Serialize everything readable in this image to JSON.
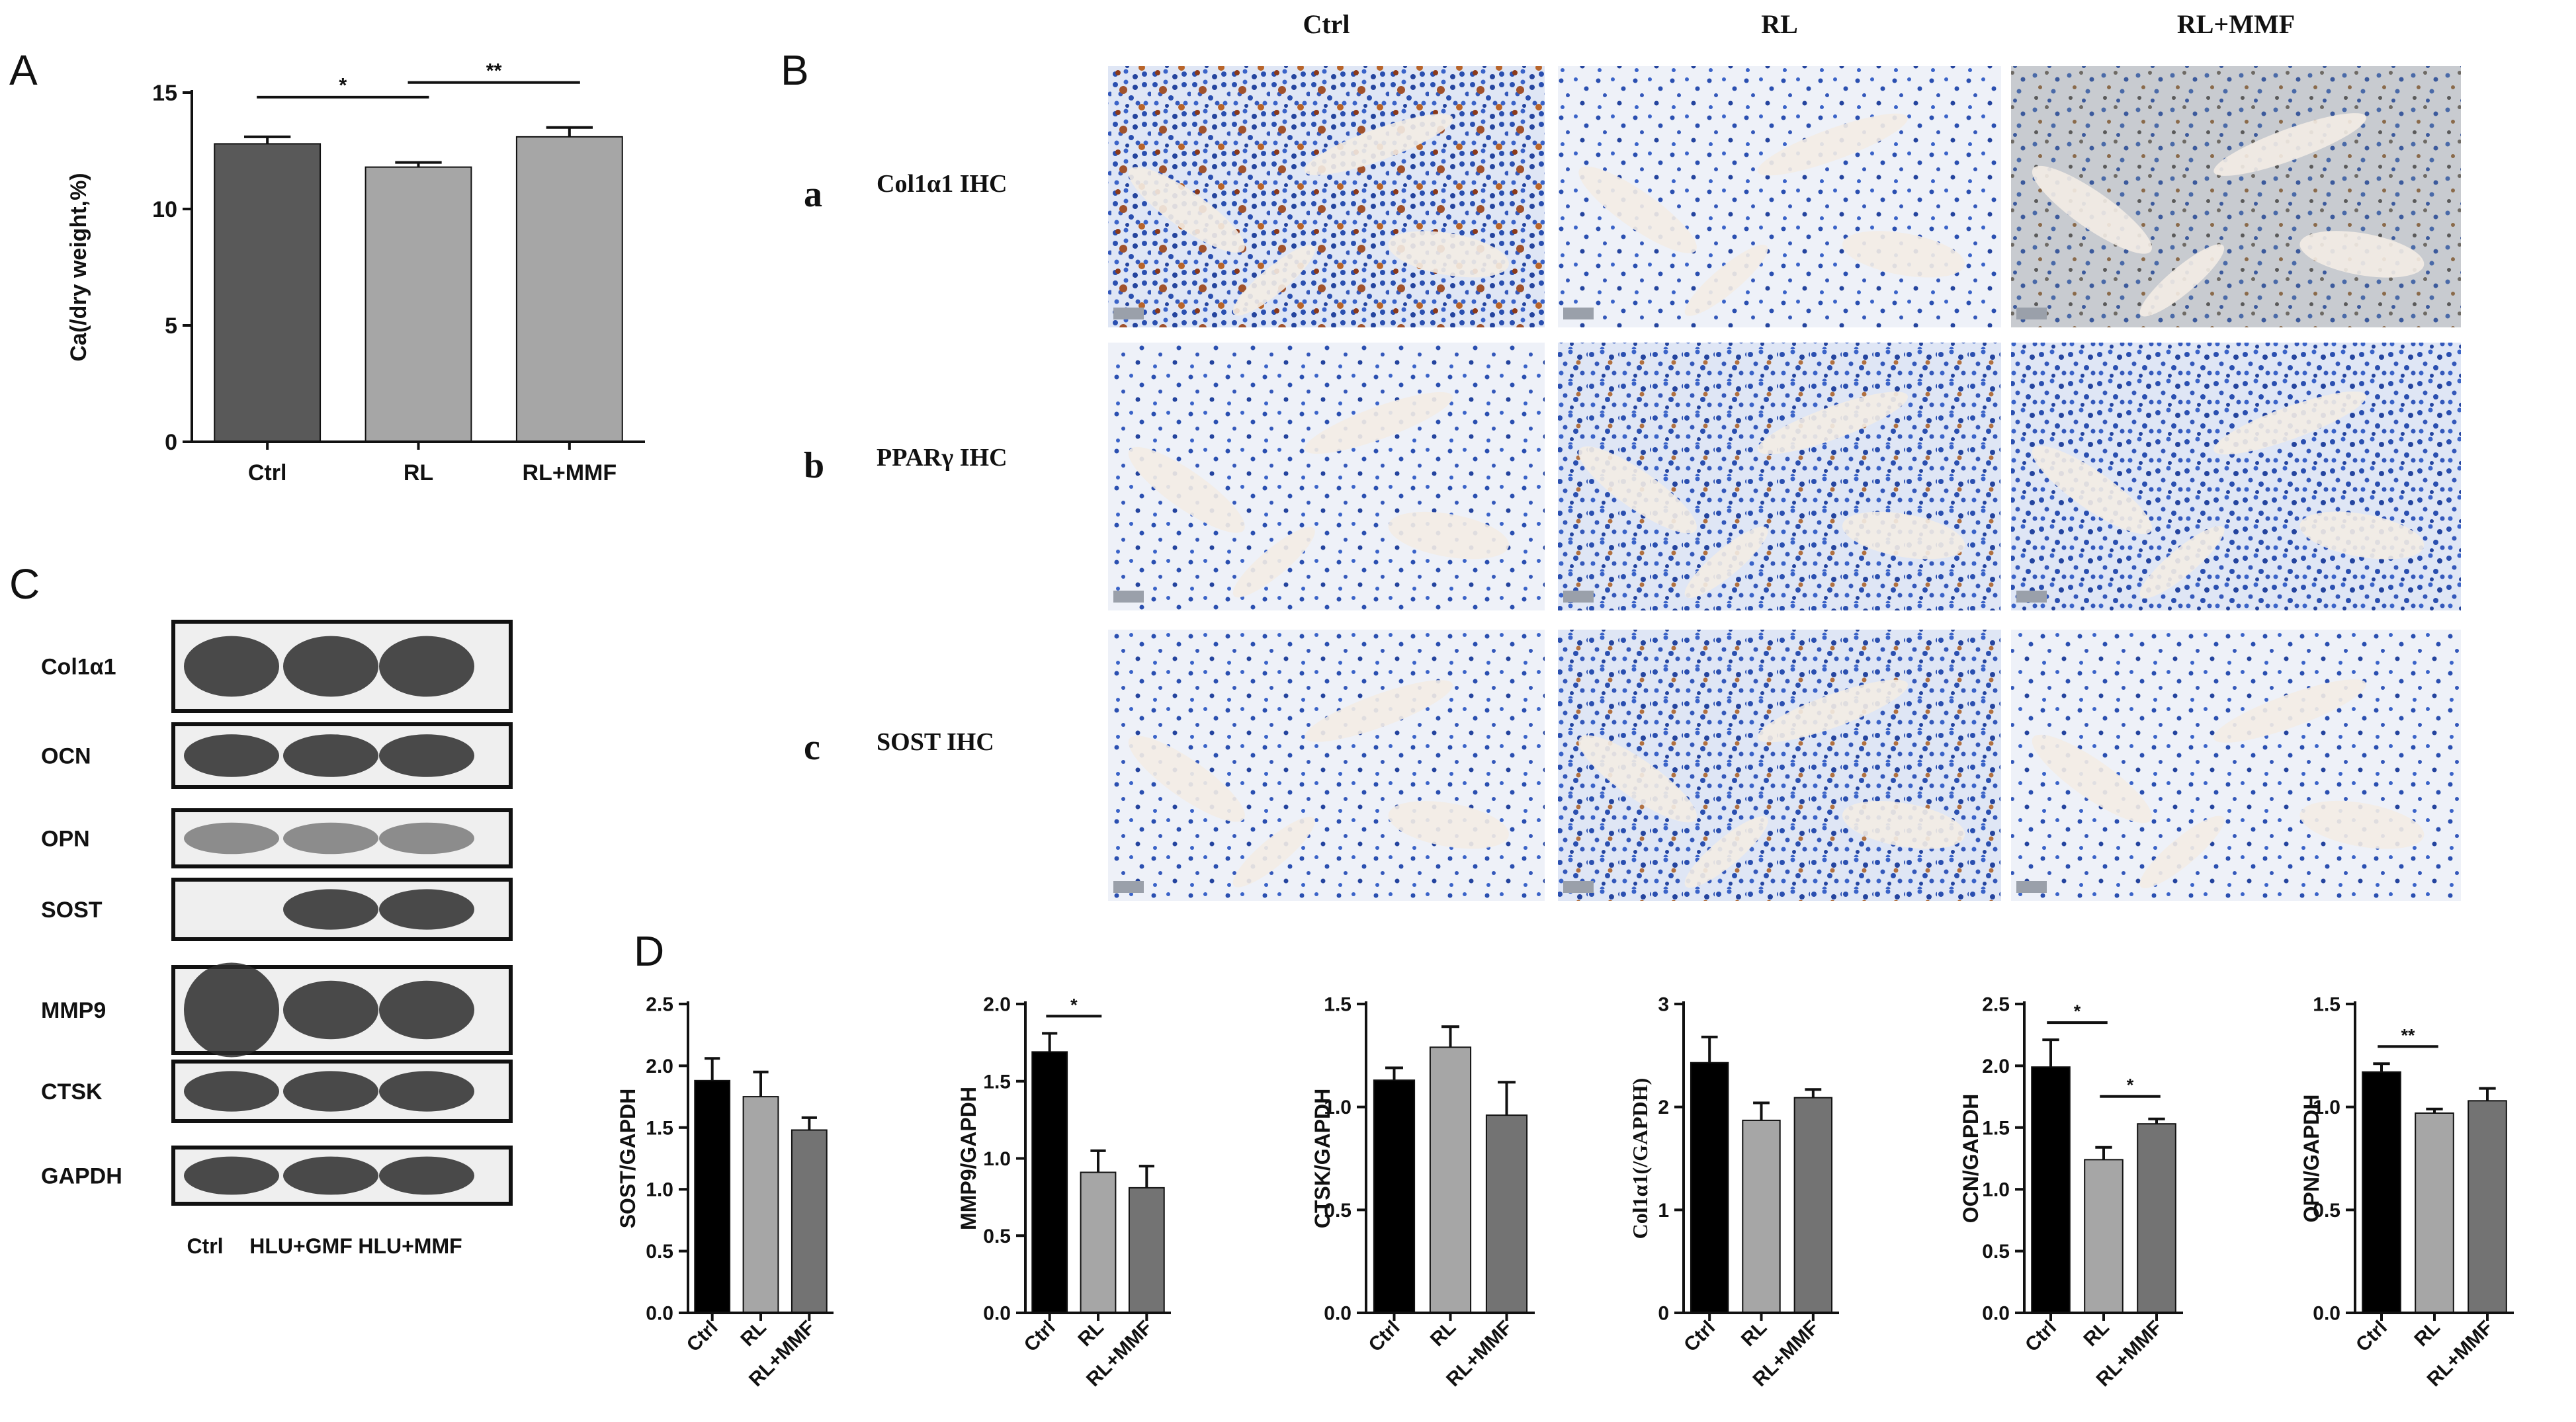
{
  "panels": {
    "A": "A",
    "B": "B",
    "C": "C",
    "D": "D"
  },
  "histology": {
    "columns": [
      "Ctrl",
      "RL",
      "RL+MMF"
    ],
    "rows": [
      {
        "letter": "a",
        "label": "Col1α1 IHC"
      },
      {
        "letter": "b",
        "label": "PPARγ IHC"
      },
      {
        "letter": "c",
        "label": "SOST IHC"
      }
    ]
  },
  "western": {
    "bands": [
      "Col1α1",
      "OCN",
      "OPN",
      "SOST",
      "MMP9",
      "CTSK",
      "GAPDH"
    ],
    "lanes": [
      "Ctrl",
      "HLU+GMF",
      "HLU+MMF"
    ]
  },
  "chart_data": [
    {
      "id": "A",
      "type": "bar",
      "categories": [
        "Ctrl",
        "RL",
        "RL+MMF"
      ],
      "values": [
        12.8,
        11.8,
        13.1
      ],
      "errors": [
        0.3,
        0.2,
        0.4
      ],
      "colors": [
        "#595959",
        "#a6a6a6",
        "#a6a6a6"
      ],
      "ylabel": "Ca(/dry weight,%)",
      "ylim": [
        0,
        15
      ],
      "yticks": [
        0,
        5,
        10,
        15
      ],
      "significance": [
        {
          "from": 0,
          "to": 1,
          "label": "*"
        },
        {
          "from": 1,
          "to": 2,
          "label": "**"
        }
      ]
    },
    {
      "id": "D1",
      "type": "bar",
      "categories": [
        "Ctrl",
        "RL",
        "RL+MMF"
      ],
      "values": [
        1.88,
        1.75,
        1.48
      ],
      "errors": [
        0.18,
        0.2,
        0.1
      ],
      "colors": [
        "#000000",
        "#a6a6a6",
        "#737373"
      ],
      "ylabel": "SOST/GAPDH",
      "ylim": [
        0,
        2.5
      ],
      "yticks": [
        0.0,
        0.5,
        1.0,
        1.5,
        2.0,
        2.5
      ],
      "significance": []
    },
    {
      "id": "D2",
      "type": "bar",
      "categories": [
        "Ctrl",
        "RL",
        "RL+MMF"
      ],
      "values": [
        1.69,
        0.91,
        0.81
      ],
      "errors": [
        0.12,
        0.14,
        0.14
      ],
      "colors": [
        "#000000",
        "#a6a6a6",
        "#737373"
      ],
      "ylabel": "MMP9/GAPDH",
      "ylim": [
        0,
        2.0
      ],
      "yticks": [
        0.0,
        0.5,
        1.0,
        1.5,
        2.0
      ],
      "significance": [
        {
          "from": 0,
          "to": 1,
          "label": "*"
        }
      ]
    },
    {
      "id": "D3",
      "type": "bar",
      "categories": [
        "Ctrl",
        "RL",
        "RL+MMF"
      ],
      "values": [
        1.13,
        1.29,
        0.96
      ],
      "errors": [
        0.06,
        0.1,
        0.16
      ],
      "colors": [
        "#000000",
        "#a6a6a6",
        "#737373"
      ],
      "ylabel": "CTSK/GAPDH",
      "ylim": [
        0,
        1.5
      ],
      "yticks": [
        0.0,
        0.5,
        1.0,
        1.5
      ],
      "significance": []
    },
    {
      "id": "D4",
      "type": "bar",
      "categories": [
        "Ctrl",
        "RL",
        "RL+MMF"
      ],
      "values": [
        2.43,
        1.87,
        2.09
      ],
      "errors": [
        0.25,
        0.17,
        0.08
      ],
      "colors": [
        "#000000",
        "#a6a6a6",
        "#737373"
      ],
      "ylabel": "Col1α1(/GAPDH)",
      "ylim": [
        0,
        3
      ],
      "yticks": [
        0,
        1,
        2,
        3
      ],
      "significance": []
    },
    {
      "id": "D5",
      "type": "bar",
      "categories": [
        "Ctrl",
        "RL",
        "RL+MMF"
      ],
      "values": [
        1.99,
        1.24,
        1.53
      ],
      "errors": [
        0.22,
        0.1,
        0.04
      ],
      "colors": [
        "#000000",
        "#a6a6a6",
        "#737373"
      ],
      "ylabel": "OCN/GAPDH",
      "ylim": [
        0,
        2.5
      ],
      "yticks": [
        0.0,
        0.5,
        1.0,
        1.5,
        2.0,
        2.5
      ],
      "significance": [
        {
          "from": 0,
          "to": 1,
          "label": "*"
        },
        {
          "from": 1,
          "to": 2,
          "label": "*"
        }
      ]
    },
    {
      "id": "D6",
      "type": "bar",
      "categories": [
        "Ctrl",
        "RL",
        "RL+MMF"
      ],
      "values": [
        1.17,
        0.97,
        1.03
      ],
      "errors": [
        0.04,
        0.02,
        0.06
      ],
      "colors": [
        "#000000",
        "#a6a6a6",
        "#737373"
      ],
      "ylabel": "OPN/GAPDH",
      "ylim": [
        0,
        1.5
      ],
      "yticks": [
        0.0,
        0.5,
        1.0,
        1.5
      ],
      "significance": [
        {
          "from": 0,
          "to": 1,
          "label": "**"
        }
      ]
    }
  ]
}
